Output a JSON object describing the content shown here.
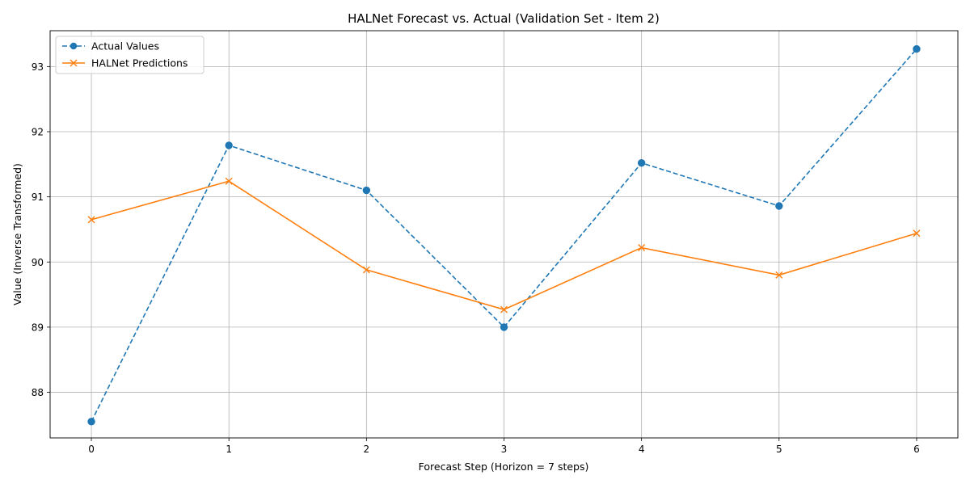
{
  "chart_data": {
    "type": "line",
    "title": "HALNet Forecast vs. Actual (Validation Set - Item 2)",
    "xlabel": "Forecast Step (Horizon = 7 steps)",
    "ylabel": "Value (Inverse Transformed)",
    "x": [
      0,
      1,
      2,
      3,
      4,
      5,
      6
    ],
    "xticks": [
      "0",
      "1",
      "2",
      "3",
      "4",
      "5",
      "6"
    ],
    "yticks": [
      "88",
      "89",
      "90",
      "91",
      "92",
      "93"
    ],
    "xlim": [
      -0.3,
      6.3
    ],
    "ylim": [
      87.3,
      93.55
    ],
    "grid": true,
    "legend_position": "upper-left",
    "series": [
      {
        "name": "Actual Values",
        "values": [
          87.55,
          91.79,
          91.1,
          89.0,
          91.52,
          90.86,
          93.27
        ],
        "color": "#1f77b4",
        "line_style": "dashed",
        "marker": "circle"
      },
      {
        "name": "HALNet Predictions",
        "values": [
          90.65,
          91.24,
          89.88,
          89.27,
          90.22,
          89.8,
          90.44
        ],
        "color": "#ff7f0e",
        "line_style": "solid",
        "marker": "x"
      }
    ]
  }
}
